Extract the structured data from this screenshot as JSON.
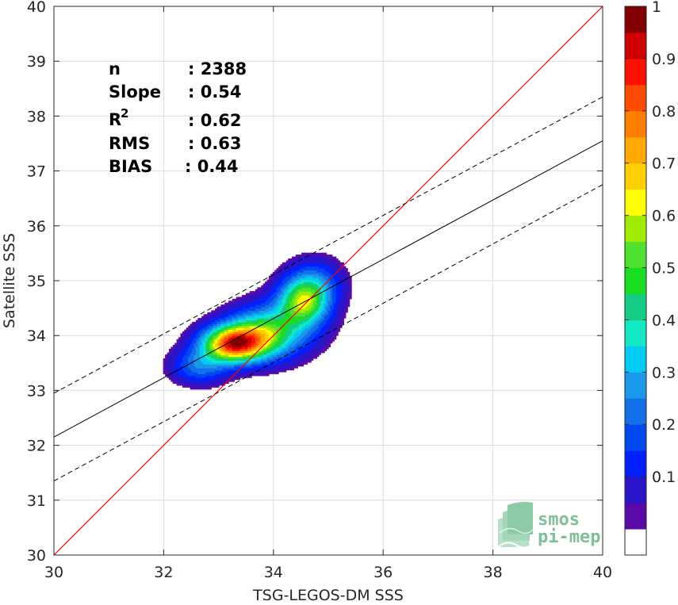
{
  "chart_data": {
    "type": "heatmap",
    "subtype": "density-contour-scatter",
    "xlabel": "TSG-LEGOS-DM SSS",
    "ylabel": "Satellite SSS",
    "xlim": [
      30,
      40
    ],
    "ylim": [
      30,
      40
    ],
    "xticks": [
      "30",
      "32",
      "34",
      "36",
      "38",
      "40"
    ],
    "yticks": [
      "30",
      "31",
      "32",
      "33",
      "34",
      "35",
      "36",
      "37",
      "38",
      "39",
      "40"
    ],
    "grid": true,
    "stats": [
      {
        "label": "n",
        "value": ": 2388"
      },
      {
        "label": "Slope",
        "value": ": 0.54"
      },
      {
        "label": "R",
        "sup": "2",
        "value": ": 0.62"
      },
      {
        "label": "RMS",
        "value": ": 0.63"
      },
      {
        "label": "BIAS",
        "value": ": 0.44"
      }
    ],
    "lines": {
      "identity": {
        "color": "#ff0000",
        "slope": 1,
        "intercept": 0
      },
      "fit": {
        "color": "#000000",
        "points": [
          [
            30,
            32.15
          ],
          [
            40,
            37.55
          ]
        ]
      },
      "fit_upper": {
        "color": "#000000",
        "dash": true,
        "points": [
          [
            30,
            32.95
          ],
          [
            40,
            38.35
          ]
        ]
      },
      "fit_lower": {
        "color": "#000000",
        "dash": true,
        "points": [
          [
            30,
            31.35
          ],
          [
            40,
            36.75
          ]
        ]
      }
    },
    "density_peaks": [
      {
        "x": 33.25,
        "y": 33.85,
        "sx": 0.38,
        "sy": 0.22,
        "amp": 1.0
      },
      {
        "x": 33.75,
        "y": 34.0,
        "sx": 0.45,
        "sy": 0.3,
        "amp": 0.55
      },
      {
        "x": 34.55,
        "y": 34.62,
        "sx": 0.3,
        "sy": 0.28,
        "amp": 0.62
      },
      {
        "x": 32.65,
        "y": 33.45,
        "sx": 0.35,
        "sy": 0.22,
        "amp": 0.3
      },
      {
        "x": 34.2,
        "y": 34.2,
        "sx": 0.5,
        "sy": 0.35,
        "amp": 0.25
      },
      {
        "x": 34.75,
        "y": 34.95,
        "sx": 0.35,
        "sy": 0.3,
        "amp": 0.28
      }
    ],
    "colorbar": {
      "limits": [
        0,
        1
      ],
      "ticks": [
        "0.1",
        "0.2",
        "0.3",
        "0.4",
        "0.5",
        "0.6",
        "0.7",
        "0.8",
        "0.9",
        "1"
      ],
      "levels": [
        0,
        0.05,
        0.1,
        0.15,
        0.2,
        0.25,
        0.3,
        0.35,
        0.4,
        0.45,
        0.5,
        0.55,
        0.6,
        0.65,
        0.7,
        0.75,
        0.8,
        0.85,
        0.9,
        0.95,
        1.0
      ],
      "colors": [
        "#ffffff",
        "#5a0aa8",
        "#2a15c8",
        "#0020ff",
        "#0048f0",
        "#1470ea",
        "#1a98ea",
        "#00ccf4",
        "#12e8c4",
        "#14cc84",
        "#18dd20",
        "#50e030",
        "#a0ea00",
        "#ffff00",
        "#ffd000",
        "#ffa800",
        "#ff7e00",
        "#ff4c00",
        "#ff1000",
        "#d00000",
        "#840000"
      ]
    },
    "logo": {
      "line1": "smos",
      "line2": "pi-mep"
    }
  }
}
